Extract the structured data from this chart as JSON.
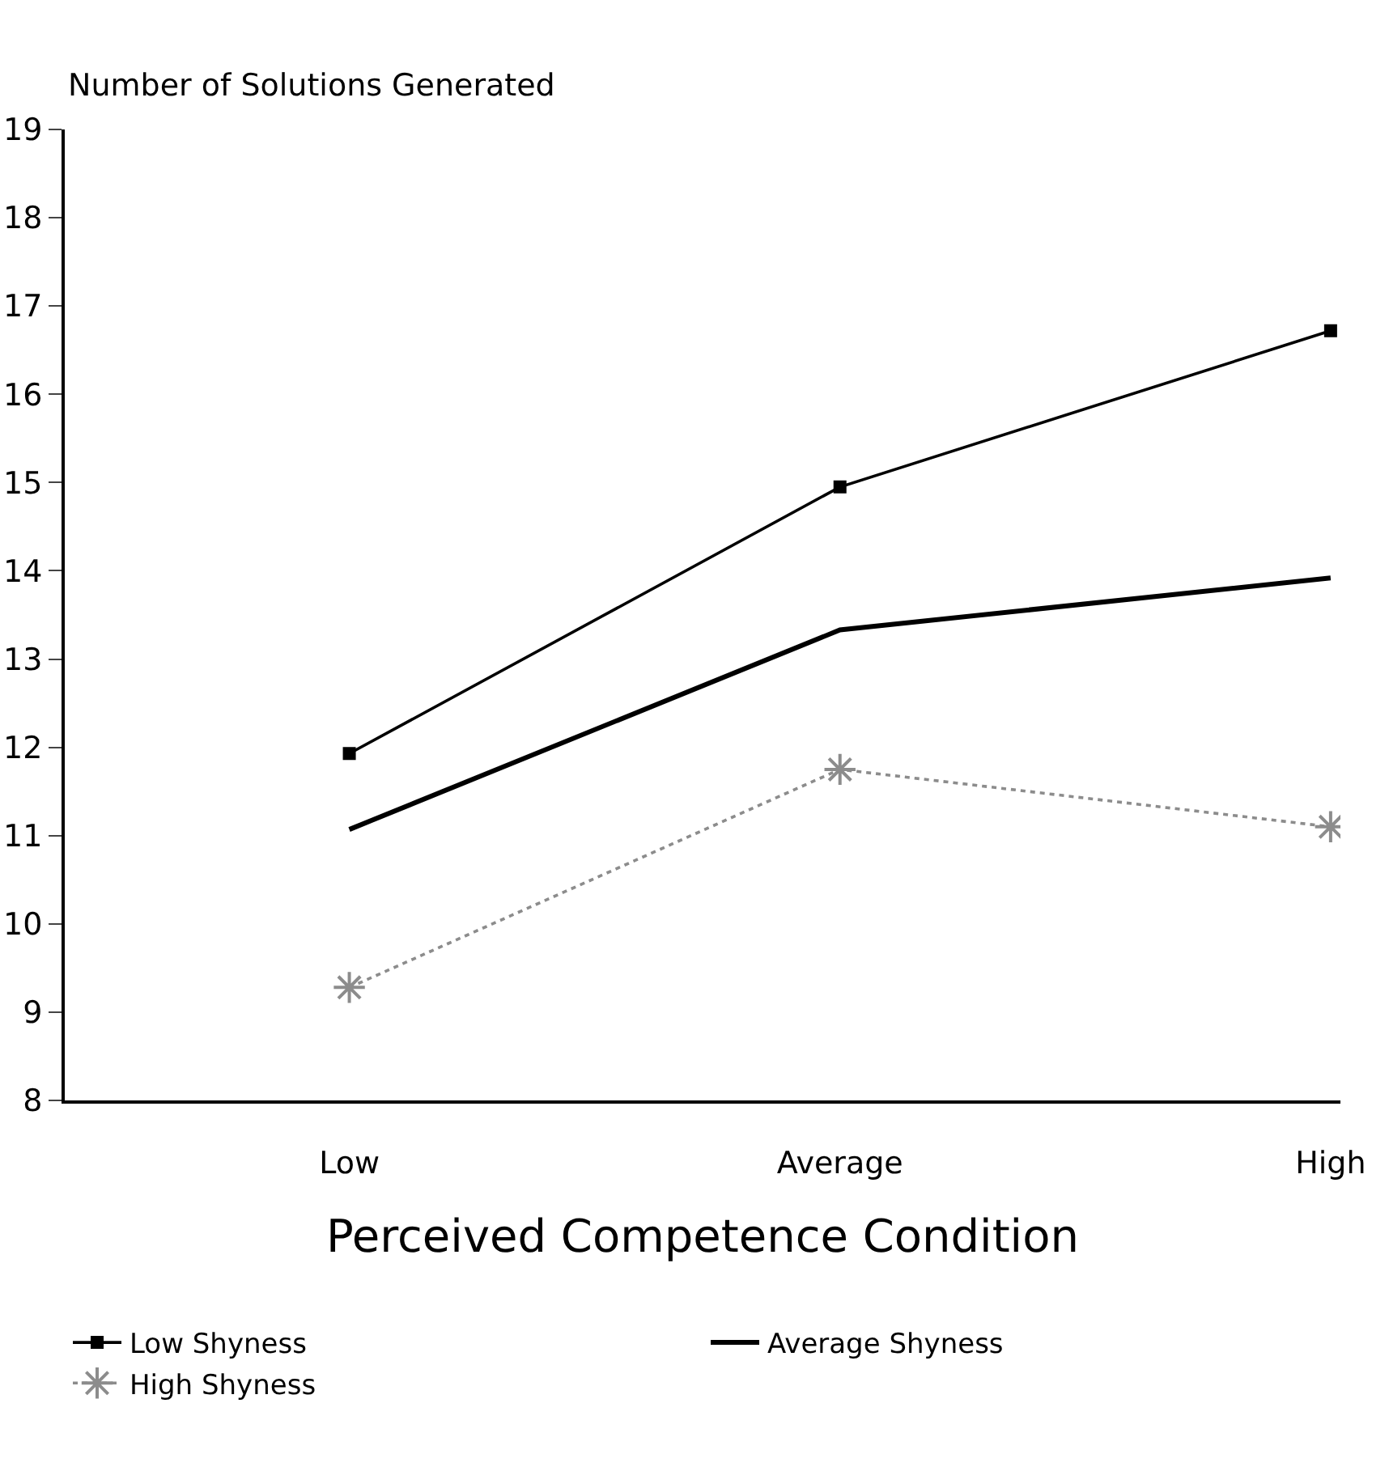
{
  "chart_data": {
    "type": "line",
    "ylabel": "Number of Solutions Generated",
    "xlabel": "Perceived Competence Condition",
    "categories": [
      "Low",
      "Average",
      "High"
    ],
    "series": [
      {
        "name": "Low Shyness",
        "color": "#000000",
        "values": [
          11.93,
          14.95,
          16.72
        ],
        "marker": "square",
        "line_style": "solid"
      },
      {
        "name": "Average Shyness",
        "color": "#000000",
        "values": [
          11.07,
          13.33,
          13.92
        ],
        "marker": "none",
        "line_style": "solid"
      },
      {
        "name": "High Shyness",
        "color": "#8c8c8c",
        "values": [
          9.28,
          11.75,
          11.1
        ],
        "marker": "cross",
        "line_style": "dotted"
      }
    ],
    "ylim": [
      8,
      19
    ],
    "yticks": [
      8,
      9,
      10,
      11,
      12,
      13,
      14,
      15,
      16,
      17,
      18,
      19
    ],
    "grid": false,
    "legend": "bottom"
  }
}
